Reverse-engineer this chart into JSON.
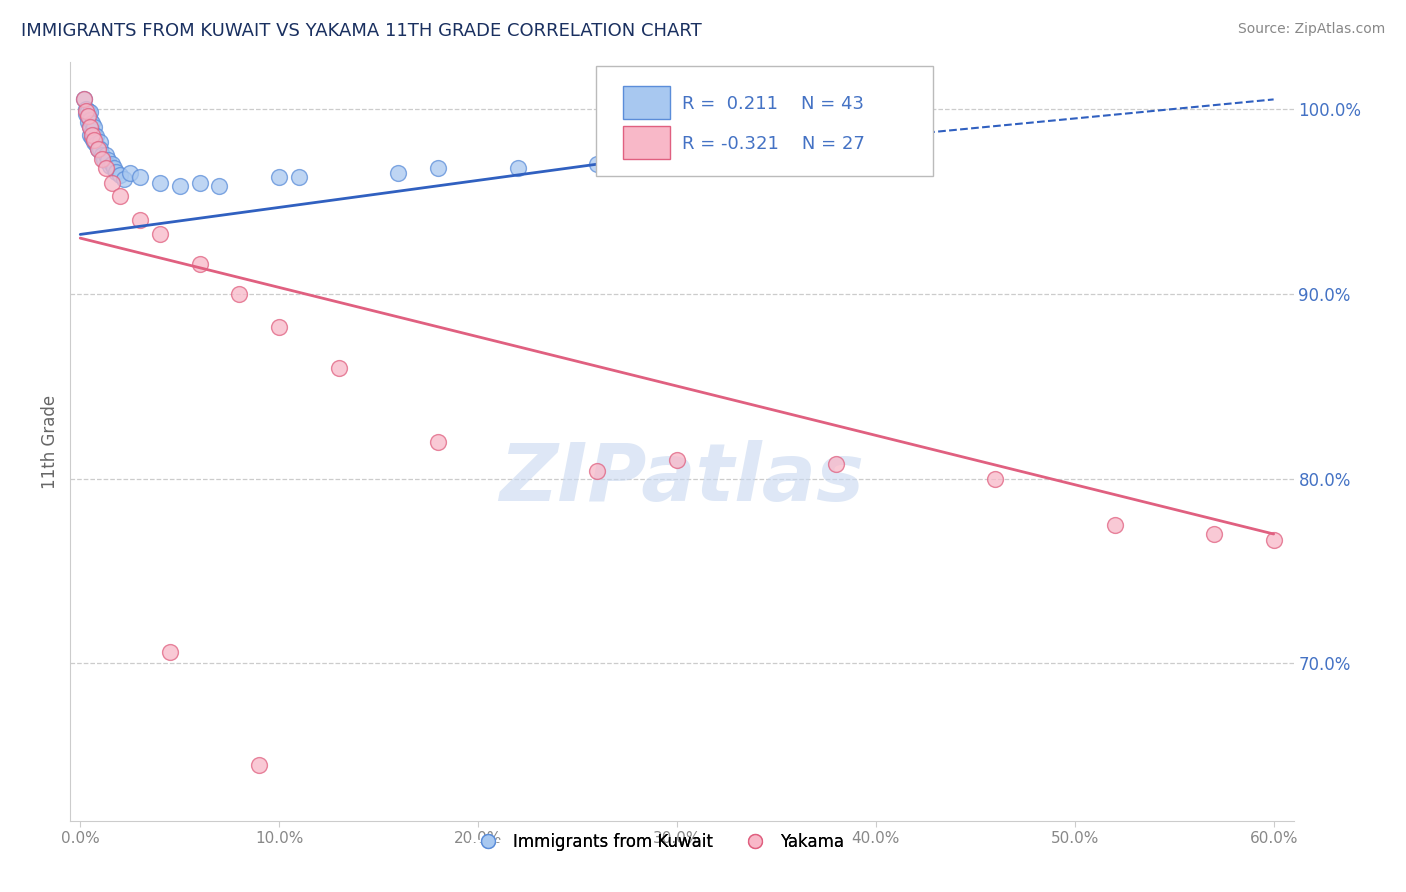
{
  "title": "IMMIGRANTS FROM KUWAIT VS YAKAMA 11TH GRADE CORRELATION CHART",
  "source_text": "Source: ZipAtlas.com",
  "ylabel": "11th Grade",
  "xlabel_ticks": [
    "0.0%",
    "10.0%",
    "20.0%",
    "30.0%",
    "40.0%",
    "50.0%",
    "60.0%"
  ],
  "xlabel_vals": [
    0.0,
    0.1,
    0.2,
    0.3,
    0.4,
    0.5,
    0.6
  ],
  "ylabel_ticks": [
    "100.0%",
    "90.0%",
    "80.0%",
    "70.0%"
  ],
  "ylabel_vals": [
    1.0,
    0.9,
    0.8,
    0.7
  ],
  "xlim": [
    -0.005,
    0.61
  ],
  "ylim": [
    0.615,
    1.025
  ],
  "R_blue": 0.211,
  "N_blue": 43,
  "R_pink": -0.321,
  "N_pink": 27,
  "watermark": "ZIPatlas",
  "blue_scatter": [
    [
      0.002,
      1.005
    ],
    [
      0.003,
      1.0
    ],
    [
      0.003,
      0.997
    ],
    [
      0.004,
      0.999
    ],
    [
      0.004,
      0.996
    ],
    [
      0.004,
      0.993
    ],
    [
      0.005,
      0.998
    ],
    [
      0.005,
      0.994
    ],
    [
      0.005,
      0.99
    ],
    [
      0.005,
      0.986
    ],
    [
      0.006,
      0.992
    ],
    [
      0.006,
      0.988
    ],
    [
      0.006,
      0.984
    ],
    [
      0.007,
      0.99
    ],
    [
      0.007,
      0.986
    ],
    [
      0.007,
      0.982
    ],
    [
      0.008,
      0.985
    ],
    [
      0.008,
      0.981
    ],
    [
      0.009,
      0.978
    ],
    [
      0.01,
      0.982
    ],
    [
      0.01,
      0.978
    ],
    [
      0.011,
      0.975
    ],
    [
      0.012,
      0.972
    ],
    [
      0.013,
      0.975
    ],
    [
      0.014,
      0.972
    ],
    [
      0.015,
      0.969
    ],
    [
      0.016,
      0.97
    ],
    [
      0.017,
      0.968
    ],
    [
      0.018,
      0.966
    ],
    [
      0.02,
      0.964
    ],
    [
      0.022,
      0.962
    ],
    [
      0.025,
      0.965
    ],
    [
      0.03,
      0.963
    ],
    [
      0.04,
      0.96
    ],
    [
      0.05,
      0.958
    ],
    [
      0.06,
      0.96
    ],
    [
      0.07,
      0.958
    ],
    [
      0.1,
      0.963
    ],
    [
      0.11,
      0.963
    ],
    [
      0.16,
      0.965
    ],
    [
      0.18,
      0.968
    ],
    [
      0.22,
      0.968
    ],
    [
      0.26,
      0.97
    ]
  ],
  "pink_scatter": [
    [
      0.002,
      1.005
    ],
    [
      0.003,
      0.999
    ],
    [
      0.004,
      0.996
    ],
    [
      0.005,
      0.99
    ],
    [
      0.006,
      0.986
    ],
    [
      0.007,
      0.983
    ],
    [
      0.009,
      0.978
    ],
    [
      0.011,
      0.973
    ],
    [
      0.013,
      0.968
    ],
    [
      0.016,
      0.96
    ],
    [
      0.02,
      0.953
    ],
    [
      0.03,
      0.94
    ],
    [
      0.04,
      0.932
    ],
    [
      0.06,
      0.916
    ],
    [
      0.08,
      0.9
    ],
    [
      0.1,
      0.882
    ],
    [
      0.13,
      0.86
    ],
    [
      0.18,
      0.82
    ],
    [
      0.26,
      0.804
    ],
    [
      0.3,
      0.81
    ],
    [
      0.38,
      0.808
    ],
    [
      0.46,
      0.8
    ],
    [
      0.52,
      0.775
    ],
    [
      0.57,
      0.77
    ],
    [
      0.6,
      0.767
    ],
    [
      0.045,
      0.706
    ],
    [
      0.09,
      0.645
    ]
  ],
  "blue_color": "#A8C8F0",
  "pink_color": "#F8B8C8",
  "blue_edge_color": "#5B8DD9",
  "pink_edge_color": "#E06080",
  "blue_line_color": "#3060C0",
  "pink_line_color": "#E06080",
  "title_color": "#1a3060",
  "axis_label_color": "#666666",
  "tick_color": "#888888",
  "right_tick_color": "#4472C4",
  "grid_color": "#CCCCCC",
  "legend_text_color": "#4472C4",
  "watermark_color": "#C8D8F0",
  "background_color": "#FFFFFF",
  "blue_dashed_line": [
    [
      0.005,
      0.935
    ],
    [
      0.26,
      0.97
    ]
  ],
  "blue_solid_line_x": [
    0.0,
    0.26
  ],
  "blue_solid_line_y": [
    0.932,
    0.97
  ],
  "pink_solid_line_x": [
    0.0,
    0.6
  ],
  "pink_solid_line_y": [
    0.93,
    0.77
  ]
}
